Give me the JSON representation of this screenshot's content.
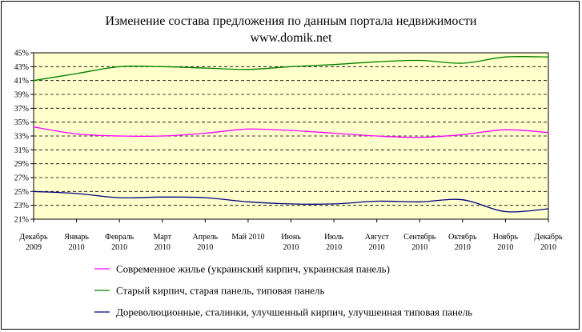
{
  "chart_data": {
    "type": "line",
    "title_lines": [
      "Изменение состава предложения по данным портала недвижимости",
      "www.domik.net"
    ],
    "x": [
      [
        "Декабрь",
        "2009"
      ],
      [
        "Январь",
        "2010"
      ],
      [
        "Февраль",
        "2010"
      ],
      [
        "Март",
        "2010"
      ],
      [
        "Апрель",
        "2010"
      ],
      [
        "Май 2010",
        ""
      ],
      [
        "Июнь",
        "2010"
      ],
      [
        "Июль",
        "2010"
      ],
      [
        "Август",
        "2010"
      ],
      [
        "Сентябрь",
        "2010"
      ],
      [
        "Октябрь",
        "2010"
      ],
      [
        "Ноябрь",
        "2010"
      ],
      [
        "Декабрь",
        "2010"
      ]
    ],
    "yticks": [
      "21%",
      "23%",
      "25%",
      "27%",
      "29%",
      "31%",
      "33%",
      "35%",
      "37%",
      "39%",
      "41%",
      "43%",
      "45%"
    ],
    "ylim": [
      21,
      45
    ],
    "grid": true,
    "legend_position": "bottom",
    "series": [
      {
        "name": "Современное жилье (украинский кирпич, украинская панель)",
        "color": "#ff00ff",
        "values": [
          34.3,
          33.3,
          33.0,
          33.0,
          33.4,
          34.0,
          33.8,
          33.4,
          33.0,
          32.8,
          33.2,
          33.9,
          33.5
        ]
      },
      {
        "name": "Старый кирпич, старая панель, типовая панель",
        "color": "#008000",
        "values": [
          41.0,
          42.0,
          43.0,
          43.0,
          42.8,
          42.6,
          43.0,
          43.3,
          43.7,
          43.9,
          43.5,
          44.4,
          44.4
        ]
      },
      {
        "name": "Дореволюционные, сталинки, улучшенный кирпич, улучшенная типовая панель",
        "color": "#000080",
        "values": [
          25.0,
          24.7,
          24.1,
          24.2,
          24.1,
          23.5,
          23.2,
          23.2,
          23.6,
          23.5,
          23.8,
          22.1,
          22.5
        ]
      }
    ]
  }
}
